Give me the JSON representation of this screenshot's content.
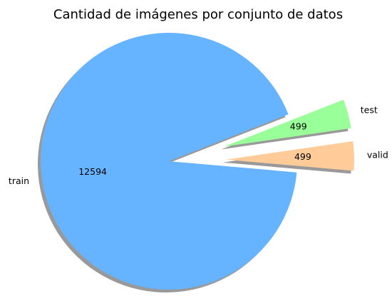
{
  "chart_data": {
    "type": "pie",
    "title": "Cantidad de imágenes por conjunto de datos",
    "labels": [
      "valid",
      "test",
      "train"
    ],
    "values": [
      499,
      499,
      12594
    ],
    "colors": [
      "#ffcc99",
      "#99ff99",
      "#66b3ff"
    ],
    "shadow": true,
    "exploded": [
      "valid",
      "test"
    ]
  }
}
